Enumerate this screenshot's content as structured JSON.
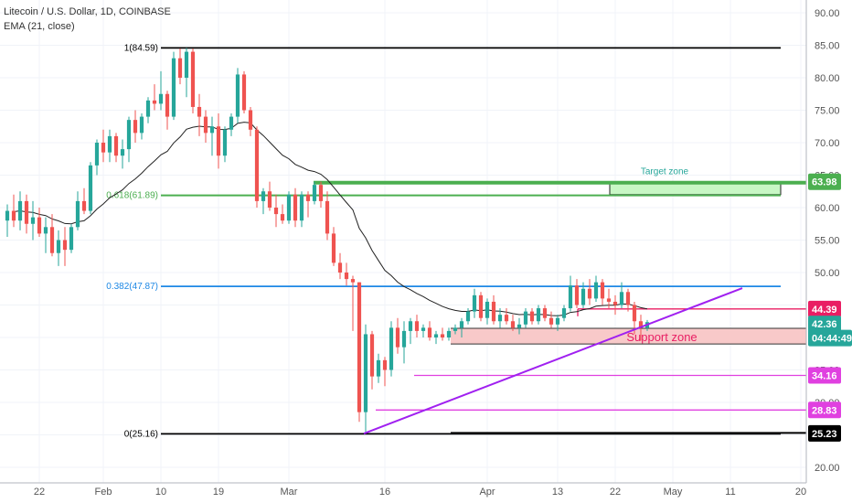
{
  "header": {
    "symbol": "Litecoin / U.S. Dollar, 1D, COINBASE",
    "indicator": "EMA (21, close)"
  },
  "colors": {
    "up": "#26a69a",
    "down": "#ef5350",
    "ema": "#222222",
    "fib_top": "#000000",
    "fib_618": "#4caf50",
    "fib_382": "#1e88e5",
    "fib_0": "#000000",
    "target": "#4caf50",
    "target_fill": "#c8f7c5",
    "support_fill": "#f8c9c9",
    "support_line": "#333333",
    "trendline": "#a020f0",
    "magenta": "#e040e0",
    "resistance": "#e91e63",
    "price_badge": "#26a69a"
  },
  "chart_data": {
    "type": "candlestick",
    "y_scale": "linear",
    "ylim": [
      20,
      90
    ],
    "y_ticks": [
      "90.00",
      "85.00",
      "80.00",
      "75.00",
      "70.00",
      "65.00",
      "60.00",
      "55.00",
      "50.00",
      "45.00",
      "40.00",
      "35.00",
      "30.00",
      "25.00",
      "20.00"
    ],
    "x_ticks": [
      "22",
      "Feb",
      "10",
      "19",
      "Mar",
      "16",
      "Apr",
      "13",
      "22",
      "May",
      "11",
      "20"
    ],
    "ema_label": "EMA (21, close)",
    "fib_levels": [
      {
        "label": "1(84.59)",
        "value": 84.59
      },
      {
        "label": "0.618(61.89)",
        "value": 61.89
      },
      {
        "label": "0.382(47.87)",
        "value": 47.87
      },
      {
        "label": "0(25.16)",
        "value": 25.16
      }
    ],
    "zones": [
      {
        "label": "Target zone",
        "low": 62.0,
        "high": 63.98
      },
      {
        "label": "Support zone",
        "low": 39.0,
        "high": 41.4
      }
    ],
    "price_labels": [
      {
        "text": "63.98",
        "value": 63.98
      },
      {
        "text": "44.39",
        "value": 44.39
      },
      {
        "text": "42.36",
        "value": 42.36
      },
      {
        "text": "04:44:49",
        "value": 40.2
      },
      {
        "text": "34.16",
        "value": 34.16
      },
      {
        "text": "28.83",
        "value": 28.83
      },
      {
        "text": "25.23",
        "value": 25.23
      }
    ],
    "horizontal_lines": [
      {
        "value": 34.16,
        "color": "magenta"
      },
      {
        "value": 28.83,
        "color": "magenta"
      },
      {
        "value": 44.39,
        "color": "resistance"
      }
    ],
    "trendline": {
      "from": {
        "date": "Mar 14",
        "value": 25.2
      },
      "to": {
        "date": "May 10",
        "value": 47.6
      }
    },
    "candles": [
      [
        58.0,
        60.5,
        55.5,
        59.5
      ],
      [
        59.5,
        62.0,
        57.0,
        58.0
      ],
      [
        58.0,
        62.5,
        56.5,
        61.0
      ],
      [
        61.0,
        62.0,
        56.0,
        57.5
      ],
      [
        57.5,
        61.0,
        55.0,
        58.5
      ],
      [
        58.5,
        60.0,
        55.5,
        56.0
      ],
      [
        56.0,
        58.5,
        53.0,
        57.0
      ],
      [
        57.0,
        59.0,
        52.5,
        53.0
      ],
      [
        53.0,
        56.5,
        51.0,
        55.0
      ],
      [
        55.0,
        57.0,
        51.0,
        53.5
      ],
      [
        53.5,
        57.5,
        53.0,
        57.0
      ],
      [
        57.0,
        62.5,
        56.5,
        61.0
      ],
      [
        61.0,
        63.0,
        59.0,
        59.5
      ],
      [
        59.5,
        67.0,
        59.0,
        66.5
      ],
      [
        66.5,
        70.5,
        65.0,
        70.0
      ],
      [
        70.0,
        72.0,
        67.0,
        68.5
      ],
      [
        68.5,
        72.0,
        67.0,
        71.0
      ],
      [
        71.0,
        71.5,
        67.0,
        68.0
      ],
      [
        68.0,
        70.5,
        66.0,
        69.0
      ],
      [
        69.0,
        74.0,
        67.0,
        73.5
      ],
      [
        73.5,
        75.0,
        70.0,
        71.5
      ],
      [
        71.5,
        74.5,
        70.5,
        74.0
      ],
      [
        74.0,
        77.0,
        73.0,
        76.5
      ],
      [
        76.5,
        79.0,
        75.0,
        76.0
      ],
      [
        76.0,
        81.0,
        75.0,
        77.5
      ],
      [
        77.5,
        78.0,
        72.0,
        74.0
      ],
      [
        74.0,
        84.0,
        73.5,
        83.0
      ],
      [
        83.0,
        84.5,
        79.0,
        80.0
      ],
      [
        80.0,
        84.6,
        77.0,
        84.0
      ],
      [
        84.0,
        84.5,
        74.5,
        75.5
      ],
      [
        75.5,
        77.5,
        71.0,
        74.0
      ],
      [
        74.0,
        75.0,
        70.0,
        71.5
      ],
      [
        71.5,
        74.0,
        68.0,
        72.5
      ],
      [
        72.5,
        74.5,
        66.0,
        68.0
      ],
      [
        68.0,
        72.5,
        67.0,
        72.0
      ],
      [
        72.0,
        74.5,
        71.0,
        74.0
      ],
      [
        74.0,
        81.5,
        73.0,
        80.5
      ],
      [
        80.5,
        81.0,
        74.5,
        75.0
      ],
      [
        75.0,
        75.5,
        71.0,
        72.0
      ],
      [
        72.0,
        72.5,
        60.0,
        61.0
      ],
      [
        61.0,
        63.0,
        59.0,
        62.5
      ],
      [
        62.5,
        64.0,
        59.5,
        60.0
      ],
      [
        60.0,
        62.0,
        57.0,
        59.0
      ],
      [
        59.0,
        60.5,
        57.5,
        58.0
      ],
      [
        58.0,
        62.5,
        57.5,
        62.0
      ],
      [
        62.0,
        63.0,
        57.0,
        58.0
      ],
      [
        58.0,
        62.5,
        57.0,
        62.0
      ],
      [
        62.0,
        62.5,
        58.5,
        61.0
      ],
      [
        61.0,
        64.0,
        60.5,
        63.5
      ],
      [
        63.5,
        64.0,
        60.0,
        61.0
      ],
      [
        61.0,
        62.5,
        55.0,
        56.0
      ],
      [
        56.0,
        57.0,
        51.0,
        51.5
      ],
      [
        51.5,
        53.0,
        49.0,
        50.0
      ],
      [
        50.0,
        51.5,
        48.0,
        49.0
      ],
      [
        49.0,
        49.5,
        41.0,
        48.5
      ],
      [
        48.5,
        48.5,
        27.0,
        28.5
      ],
      [
        28.5,
        42.0,
        25.2,
        40.5
      ],
      [
        40.5,
        41.0,
        32.0,
        34.0
      ],
      [
        34.0,
        37.5,
        33.0,
        36.5
      ],
      [
        36.5,
        37.0,
        32.5,
        35.0
      ],
      [
        35.0,
        42.5,
        34.0,
        41.5
      ],
      [
        41.5,
        43.0,
        37.5,
        38.5
      ],
      [
        38.5,
        42.5,
        36.0,
        41.0
      ],
      [
        41.0,
        43.0,
        39.0,
        42.5
      ],
      [
        42.5,
        43.5,
        40.0,
        41.0
      ],
      [
        41.0,
        42.0,
        40.0,
        41.5
      ],
      [
        41.5,
        42.5,
        39.5,
        40.0
      ],
      [
        40.0,
        41.0,
        39.0,
        40.5
      ],
      [
        40.5,
        41.5,
        39.5,
        40.0
      ],
      [
        40.0,
        41.5,
        39.5,
        41.0
      ],
      [
        41.0,
        42.0,
        40.5,
        41.5
      ],
      [
        41.5,
        43.0,
        40.0,
        42.5
      ],
      [
        42.5,
        44.5,
        42.0,
        44.0
      ],
      [
        44.0,
        47.5,
        43.0,
        46.5
      ],
      [
        46.5,
        47.0,
        42.5,
        43.0
      ],
      [
        43.0,
        46.0,
        42.0,
        45.5
      ],
      [
        45.5,
        46.5,
        42.0,
        42.5
      ],
      [
        42.5,
        44.5,
        41.5,
        43.5
      ],
      [
        43.5,
        44.5,
        42.0,
        42.5
      ],
      [
        42.5,
        43.5,
        41.0,
        41.5
      ],
      [
        41.5,
        43.0,
        40.5,
        42.0
      ],
      [
        42.0,
        44.5,
        41.5,
        44.0
      ],
      [
        44.0,
        44.5,
        42.0,
        42.5
      ],
      [
        42.5,
        45.0,
        42.0,
        44.5
      ],
      [
        44.5,
        45.0,
        42.5,
        43.0
      ],
      [
        43.0,
        44.0,
        41.5,
        42.0
      ],
      [
        42.0,
        43.5,
        41.0,
        43.0
      ],
      [
        43.0,
        45.0,
        42.5,
        44.5
      ],
      [
        44.5,
        49.5,
        44.0,
        48.0
      ],
      [
        48.0,
        49.0,
        44.5,
        45.0
      ],
      [
        45.0,
        48.5,
        44.5,
        47.5
      ],
      [
        47.5,
        49.0,
        45.0,
        46.0
      ],
      [
        46.0,
        49.5,
        45.5,
        48.5
      ],
      [
        48.5,
        49.0,
        45.0,
        46.0
      ],
      [
        46.0,
        47.5,
        44.5,
        45.5
      ],
      [
        45.5,
        46.5,
        43.5,
        45.0
      ],
      [
        45.0,
        48.5,
        44.5,
        47.0
      ],
      [
        47.0,
        47.5,
        44.0,
        45.0
      ],
      [
        45.0,
        45.5,
        40.5,
        42.5
      ],
      [
        42.5,
        43.5,
        39.5,
        41.5
      ],
      [
        41.5,
        42.7,
        41.0,
        42.36
      ]
    ]
  }
}
